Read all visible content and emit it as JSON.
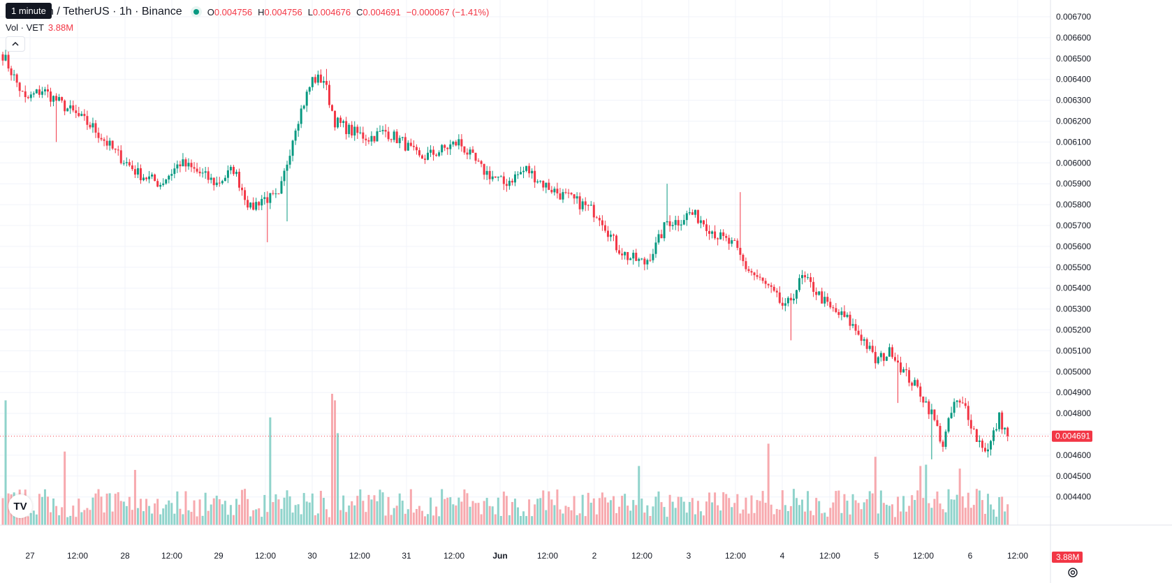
{
  "tooltip": "1 minute",
  "header": {
    "symbol_title": "n / TetherUS · 1h · Binance",
    "ohlc": {
      "open_label": "O",
      "open": "0.004756",
      "high_label": "H",
      "high": "0.004756",
      "low_label": "L",
      "low": "0.004676",
      "close_label": "C",
      "close": "0.004691",
      "change": "−0.000067 (−1.41%)"
    }
  },
  "volume_legend": {
    "label": "Vol · VET",
    "value": "3.88M"
  },
  "colors": {
    "up": "#089981",
    "down": "#f23645",
    "up_vol": "#8fd3cb",
    "down_vol": "#f7a9ae",
    "grid": "#f0f3fa"
  },
  "price_axis": {
    "ticks": [
      "0.006700",
      "0.006600",
      "0.006500",
      "0.006400",
      "0.006300",
      "0.006200",
      "0.006100",
      "0.006000",
      "0.005900",
      "0.005800",
      "0.005700",
      "0.005600",
      "0.005500",
      "0.005400",
      "0.005300",
      "0.005200",
      "0.005100",
      "0.005000",
      "0.004900",
      "0.004800",
      "0.004700",
      "0.004600",
      "0.004500",
      "0.004400"
    ],
    "current_price_label": "0.004691",
    "volume_badge": "3.88M"
  },
  "time_axis": {
    "ticks": [
      "27",
      "12:00",
      "28",
      "12:00",
      "29",
      "12:00",
      "30",
      "12:00",
      "31",
      "12:00",
      "Jun",
      "12:00",
      "2",
      "12:00",
      "3",
      "12:00",
      "4",
      "12:00",
      "5",
      "12:00",
      "6",
      "12:00"
    ]
  },
  "chart_data": {
    "type": "candlestick",
    "interval": "1h",
    "price_range": [
      0.00435,
      0.00673
    ],
    "current_price": 0.004691,
    "anchors": [
      [
        0,
        0.00652
      ],
      [
        8,
        0.0063
      ],
      [
        14,
        0.00635
      ],
      [
        24,
        0.00625
      ],
      [
        32,
        0.00617
      ],
      [
        40,
        0.00605
      ],
      [
        48,
        0.00595
      ],
      [
        56,
        0.0059
      ],
      [
        63,
        0.006
      ],
      [
        70,
        0.00595
      ],
      [
        76,
        0.0059
      ],
      [
        82,
        0.00597
      ],
      [
        88,
        0.00578
      ],
      [
        92,
        0.00583
      ],
      [
        98,
        0.00583
      ],
      [
        104,
        0.00618
      ],
      [
        110,
        0.0064
      ],
      [
        114,
        0.0064
      ],
      [
        118,
        0.0062
      ],
      [
        124,
        0.00615
      ],
      [
        130,
        0.00612
      ],
      [
        136,
        0.00615
      ],
      [
        142,
        0.0061
      ],
      [
        148,
        0.00602
      ],
      [
        154,
        0.00605
      ],
      [
        162,
        0.0061
      ],
      [
        170,
        0.00597
      ],
      [
        178,
        0.0059
      ],
      [
        186,
        0.00597
      ],
      [
        192,
        0.0059
      ],
      [
        198,
        0.00585
      ],
      [
        206,
        0.0058
      ],
      [
        212,
        0.00575
      ],
      [
        218,
        0.0056
      ],
      [
        222,
        0.00555
      ],
      [
        228,
        0.00552
      ],
      [
        232,
        0.0056
      ],
      [
        236,
        0.00572
      ],
      [
        240,
        0.00572
      ],
      [
        244,
        0.00576
      ],
      [
        248,
        0.00573
      ],
      [
        254,
        0.00565
      ],
      [
        260,
        0.0056
      ],
      [
        264,
        0.0055
      ],
      [
        268,
        0.00545
      ],
      [
        272,
        0.0054
      ],
      [
        278,
        0.0053
      ],
      [
        284,
        0.00545
      ],
      [
        288,
        0.0054
      ],
      [
        294,
        0.0053
      ],
      [
        300,
        0.00525
      ],
      [
        306,
        0.00515
      ],
      [
        310,
        0.00505
      ],
      [
        316,
        0.0051
      ],
      [
        320,
        0.005
      ],
      [
        326,
        0.0049
      ],
      [
        330,
        0.0048
      ],
      [
        334,
        0.00465
      ],
      [
        338,
        0.00485
      ],
      [
        342,
        0.00483
      ],
      [
        346,
        0.00468
      ],
      [
        350,
        0.00462
      ],
      [
        354,
        0.00478
      ],
      [
        357,
        0.00469
      ]
    ],
    "spikes": [
      {
        "i": 19,
        "low": 0.0061
      },
      {
        "i": 94,
        "low": 0.00562
      },
      {
        "i": 101,
        "low": 0.00572
      },
      {
        "i": 115,
        "high": 0.00645
      },
      {
        "i": 236,
        "high": 0.0059
      },
      {
        "i": 262,
        "high": 0.00586
      },
      {
        "i": 280,
        "low": 0.00515
      },
      {
        "i": 318,
        "low": 0.00485
      },
      {
        "i": 330,
        "low": 0.00458
      }
    ],
    "volume_spikes": [
      {
        "i": 1,
        "v": 0.95
      },
      {
        "i": 22,
        "v": 0.56
      },
      {
        "i": 47,
        "v": 0.42
      },
      {
        "i": 95,
        "v": 0.82
      },
      {
        "i": 117,
        "v": 1.0
      },
      {
        "i": 118,
        "v": 0.95
      },
      {
        "i": 119,
        "v": 0.7
      },
      {
        "i": 226,
        "v": 0.45
      },
      {
        "i": 272,
        "v": 0.62
      },
      {
        "i": 310,
        "v": 0.52
      },
      {
        "i": 326,
        "v": 0.45
      },
      {
        "i": 328,
        "v": 0.46
      },
      {
        "i": 340,
        "v": 0.43
      }
    ]
  }
}
